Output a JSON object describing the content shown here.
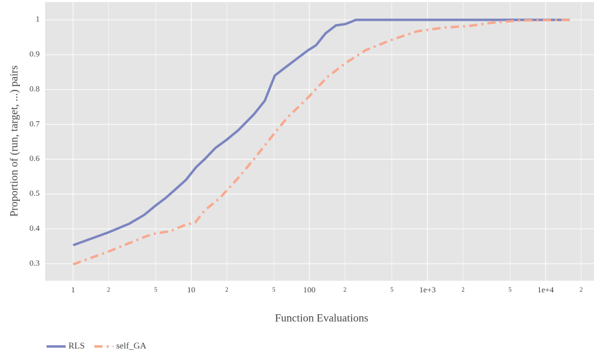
{
  "chart_data": {
    "type": "line",
    "x_label": "Function Evaluations",
    "y_label": "Proportion of (run, target, ...) pairs",
    "xscale": "log",
    "xlim": [
      0.58,
      25700
    ],
    "ylim": [
      0.251,
      1.051
    ],
    "xticks": [
      1,
      2,
      5,
      10,
      {
        "value": 20,
        "label": "2"
      },
      {
        "value": 50,
        "label": "5"
      },
      100,
      {
        "value": 200,
        "label": "2"
      },
      {
        "value": 500,
        "label": "5"
      },
      {
        "value": 1000,
        "label": "1e+3"
      },
      {
        "value": 2000,
        "label": "2"
      },
      {
        "value": 5000,
        "label": "5"
      },
      {
        "value": 10000,
        "label": "1e+4"
      },
      {
        "value": 20000,
        "label": "2"
      }
    ],
    "yticks": [
      0.3,
      0.4,
      0.5,
      0.6,
      0.7,
      0.8,
      0.9,
      1
    ],
    "grid": true,
    "legend": "bottom-left",
    "series": [
      {
        "name": "RLS",
        "color": "#7b84c0",
        "dash": "solid",
        "x": [
          1,
          2,
          3,
          4,
          5,
          6,
          7,
          9,
          11,
          13,
          16,
          20,
          25,
          34,
          42,
          51,
          63,
          97,
          114,
          137,
          168,
          203,
          248,
          300,
          1000,
          16000
        ],
        "values": [
          0.353,
          0.39,
          0.415,
          0.44,
          0.467,
          0.487,
          0.507,
          0.54,
          0.577,
          0.6,
          0.632,
          0.656,
          0.683,
          0.729,
          0.768,
          0.84,
          0.864,
          0.912,
          0.927,
          0.961,
          0.984,
          0.988,
          1,
          1,
          1,
          1
        ]
      },
      {
        "name": "self_GA",
        "color": "#f8a88e",
        "dash": "dashdot",
        "x": [
          1,
          2,
          3.2,
          4.2,
          5,
          6.6,
          9,
          10.8,
          13,
          17.3,
          25,
          36,
          50,
          65,
          97,
          141,
          203,
          300,
          520,
          820,
          1400,
          2200,
          3600,
          6000,
          16000
        ],
        "values": [
          0.298,
          0.335,
          0.363,
          0.379,
          0.387,
          0.393,
          0.412,
          0.418,
          0.453,
          0.487,
          0.546,
          0.611,
          0.672,
          0.719,
          0.776,
          0.835,
          0.876,
          0.913,
          0.945,
          0.967,
          0.978,
          0.982,
          0.992,
          0.998,
          1
        ]
      }
    ]
  }
}
